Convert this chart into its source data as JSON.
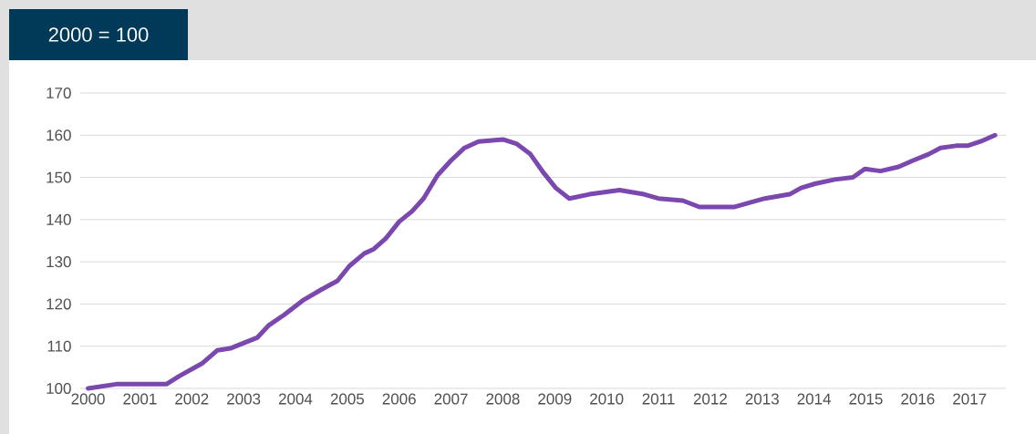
{
  "chart_data": {
    "type": "line",
    "title": "2000 = 100",
    "x": [
      2000,
      2000.54,
      2001.35,
      2001.51,
      2001.77,
      2002.21,
      2002.49,
      2002.75,
      2003.05,
      2003.26,
      2003.49,
      2003.79,
      2004.16,
      2004.51,
      2004.81,
      2005.04,
      2005.33,
      2005.51,
      2005.74,
      2006.0,
      2006.25,
      2006.47,
      2006.74,
      2007.0,
      2007.26,
      2007.53,
      2008.0,
      2008.26,
      2008.53,
      2008.79,
      2009.02,
      2009.28,
      2009.67,
      2010.25,
      2010.72,
      2011.0,
      2011.47,
      2011.79,
      2012.47,
      2012.75,
      2013.05,
      2013.53,
      2013.75,
      2014.02,
      2014.4,
      2014.75,
      2014.98,
      2015.28,
      2015.63,
      2015.91,
      2016.21,
      2016.44,
      2016.74,
      2016.96,
      2017.21,
      2017.49
    ],
    "series": [
      {
        "color": "#7b48b0",
        "values": [
          100,
          101,
          101,
          101,
          103,
          106,
          109,
          109.5,
          111,
          112,
          115,
          117.5,
          121,
          123.5,
          125.5,
          129,
          132,
          133,
          135.5,
          139.5,
          142,
          145,
          150.5,
          154,
          157,
          158.5,
          159,
          158,
          155.5,
          151,
          147.5,
          145,
          146,
          147,
          146,
          145,
          144.5,
          143,
          143,
          144,
          145,
          146,
          147.5,
          148.5,
          149.5,
          150,
          152,
          151.5,
          152.5,
          154,
          155.5,
          157,
          157.5,
          157.5,
          158.5,
          160
        ]
      }
    ],
    "xlim": [
      1999.85,
      2017.7
    ],
    "ylim": [
      100,
      170
    ],
    "xticks": [
      2000,
      2001,
      2002,
      2003,
      2004,
      2005,
      2006,
      2007,
      2008,
      2009,
      2010,
      2011,
      2012,
      2013,
      2014,
      2015,
      2016,
      2017
    ],
    "yticks": [
      100,
      110,
      120,
      130,
      140,
      150,
      160,
      170
    ],
    "grid": "y",
    "marker": "none",
    "line_style": "solid"
  }
}
